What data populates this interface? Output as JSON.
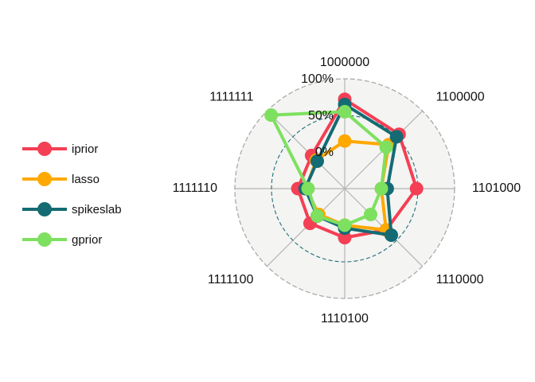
{
  "chart_data": {
    "type": "radar",
    "title": "",
    "axes": [
      "1000000",
      "1100000",
      "1101000",
      "1110000",
      "1110100",
      "1111100",
      "1111110",
      "1111111"
    ],
    "grid_labels": [
      "0%",
      "50%",
      "100%"
    ],
    "range": [
      -0.5,
      1.0
    ],
    "legend_position": "left",
    "background": "#f4f4f2",
    "series": [
      {
        "name": "iprior",
        "color": "#f43f54",
        "values": [
          0.72,
          0.55,
          0.48,
          0.3,
          0.17,
          0.17,
          0.14,
          0.14
        ]
      },
      {
        "name": "lasso",
        "color": "#ffa800",
        "values": [
          0.15,
          0.35,
          0.0,
          0.3,
          0.0,
          0.0,
          0.03,
          0.05
        ]
      },
      {
        "name": "spikeslab",
        "color": "#146b74",
        "values": [
          0.65,
          0.5,
          0.08,
          0.4,
          0.04,
          0.03,
          0.04,
          0.03
        ]
      },
      {
        "name": "gprior",
        "color": "#7ee05f",
        "values": [
          0.55,
          0.3,
          0.0,
          0.0,
          0.0,
          0.03,
          0.0,
          0.92
        ]
      }
    ]
  }
}
